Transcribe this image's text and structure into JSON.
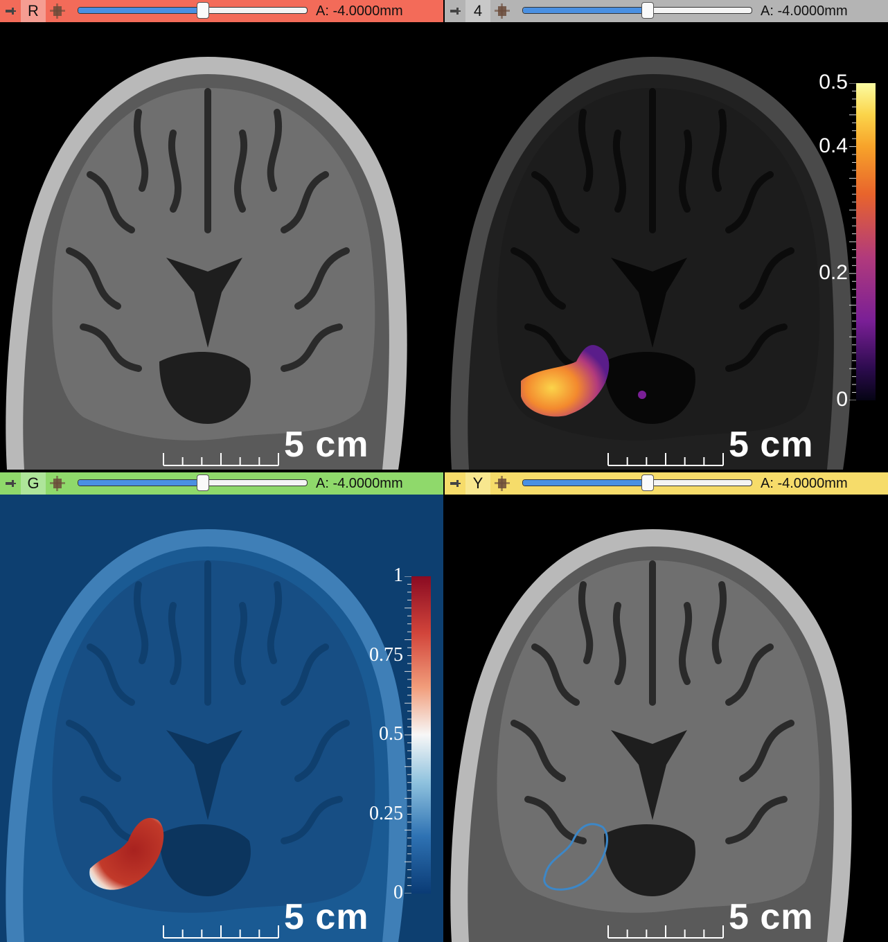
{
  "views": [
    {
      "id": "red",
      "label": "R",
      "bar_color": "#f36b59",
      "label_bg": "#f59d92",
      "offset_text": "A: -4.0000mm",
      "scale_text": "5 cm",
      "slider_fraction": 0.56
    },
    {
      "id": "4",
      "label": "4",
      "bar_color": "#b4b4b4",
      "label_bg": "#c8c8c8",
      "offset_text": "A: -4.0000mm",
      "scale_text": "5 cm",
      "slider_fraction": 0.56,
      "colorbar": {
        "colormap": "inferno",
        "ticks": [
          "0.5",
          "0.4",
          "0.2",
          "0"
        ]
      }
    },
    {
      "id": "green",
      "label": "G",
      "bar_color": "#8fd96b",
      "label_bg": "#aee59a",
      "offset_text": "A: -4.0000mm",
      "scale_text": "5 cm",
      "slider_fraction": 0.56,
      "colorbar": {
        "colormap": "blue-white-red",
        "ticks": [
          "1",
          "0.75",
          "0.5",
          "0.25",
          "0"
        ]
      }
    },
    {
      "id": "yellow",
      "label": "Y",
      "bar_color": "#f6dc6a",
      "label_bg": "#f8e78f",
      "offset_text": "A: -4.0000mm",
      "scale_text": "5 cm",
      "slider_fraction": 0.56
    }
  ],
  "icons": {
    "pin": "pin-icon",
    "link": "link-icon"
  }
}
